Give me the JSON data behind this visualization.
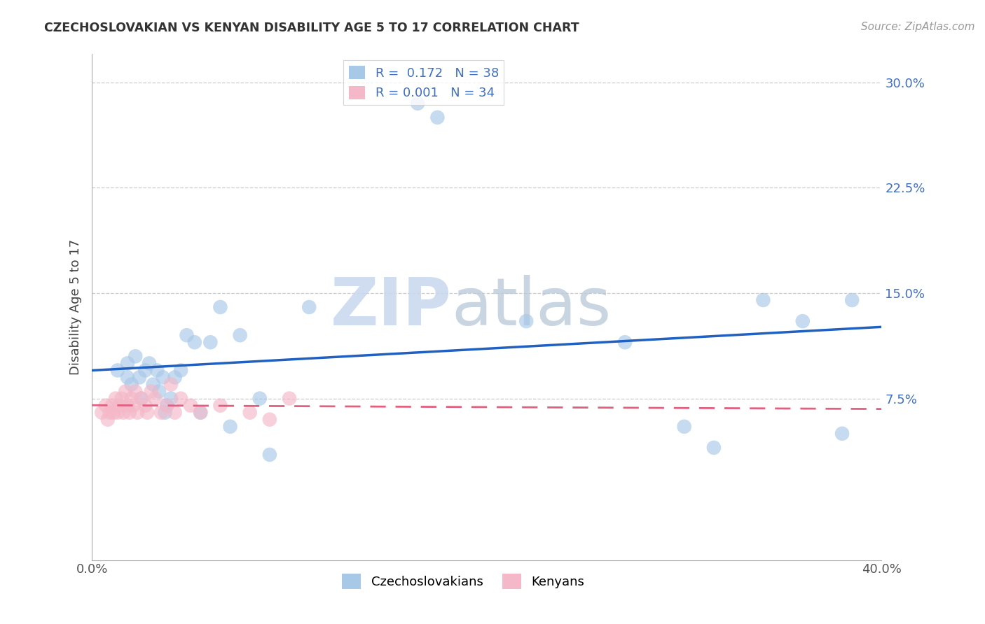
{
  "title": "CZECHOSLOVAKIAN VS KENYAN DISABILITY AGE 5 TO 17 CORRELATION CHART",
  "source": "Source: ZipAtlas.com",
  "ylabel": "Disability Age 5 to 17",
  "xlim": [
    0.0,
    0.4
  ],
  "ylim": [
    -0.04,
    0.32
  ],
  "yticks": [
    0.075,
    0.15,
    0.225,
    0.3
  ],
  "ytick_labels": [
    "7.5%",
    "15.0%",
    "22.5%",
    "30.0%"
  ],
  "legend_r1": "R =  0.172",
  "legend_n1": "N = 38",
  "legend_r2": "R = 0.001",
  "legend_n2": "N = 34",
  "blue_color": "#a8c8e8",
  "pink_color": "#f4b8c8",
  "trend_blue": "#2060c0",
  "trend_pink": "#e06080",
  "label_color": "#4070c0",
  "background_color": "#ffffff",
  "grid_color": "#cccccc",
  "czecho_x": [
    0.013,
    0.018,
    0.018,
    0.02,
    0.022,
    0.024,
    0.025,
    0.027,
    0.029,
    0.031,
    0.033,
    0.034,
    0.036,
    0.037,
    0.038,
    0.04,
    0.042,
    0.045,
    0.048,
    0.052,
    0.055,
    0.06,
    0.065,
    0.07,
    0.075,
    0.085,
    0.09,
    0.11,
    0.165,
    0.175,
    0.22,
    0.27,
    0.3,
    0.315,
    0.34,
    0.36,
    0.38,
    0.385
  ],
  "czecho_y": [
    0.095,
    0.09,
    0.1,
    0.085,
    0.105,
    0.09,
    0.075,
    0.095,
    0.1,
    0.085,
    0.095,
    0.08,
    0.09,
    0.065,
    0.07,
    0.075,
    0.09,
    0.095,
    0.12,
    0.115,
    0.065,
    0.115,
    0.14,
    0.055,
    0.12,
    0.075,
    0.035,
    0.14,
    0.285,
    0.275,
    0.13,
    0.115,
    0.055,
    0.04,
    0.145,
    0.13,
    0.05,
    0.145
  ],
  "kenyan_x": [
    0.005,
    0.007,
    0.008,
    0.009,
    0.01,
    0.011,
    0.012,
    0.013,
    0.014,
    0.015,
    0.016,
    0.017,
    0.018,
    0.019,
    0.02,
    0.021,
    0.022,
    0.023,
    0.025,
    0.027,
    0.028,
    0.03,
    0.032,
    0.035,
    0.038,
    0.04,
    0.042,
    0.045,
    0.05,
    0.055,
    0.065,
    0.08,
    0.09,
    0.1
  ],
  "kenyan_y": [
    0.065,
    0.07,
    0.06,
    0.065,
    0.07,
    0.065,
    0.075,
    0.065,
    0.07,
    0.075,
    0.065,
    0.08,
    0.07,
    0.065,
    0.075,
    0.07,
    0.08,
    0.065,
    0.075,
    0.07,
    0.065,
    0.08,
    0.075,
    0.065,
    0.07,
    0.085,
    0.065,
    0.075,
    0.07,
    0.065,
    0.07,
    0.065,
    0.06,
    0.075
  ],
  "watermark_zip": "ZIP",
  "watermark_atlas": "atlas"
}
